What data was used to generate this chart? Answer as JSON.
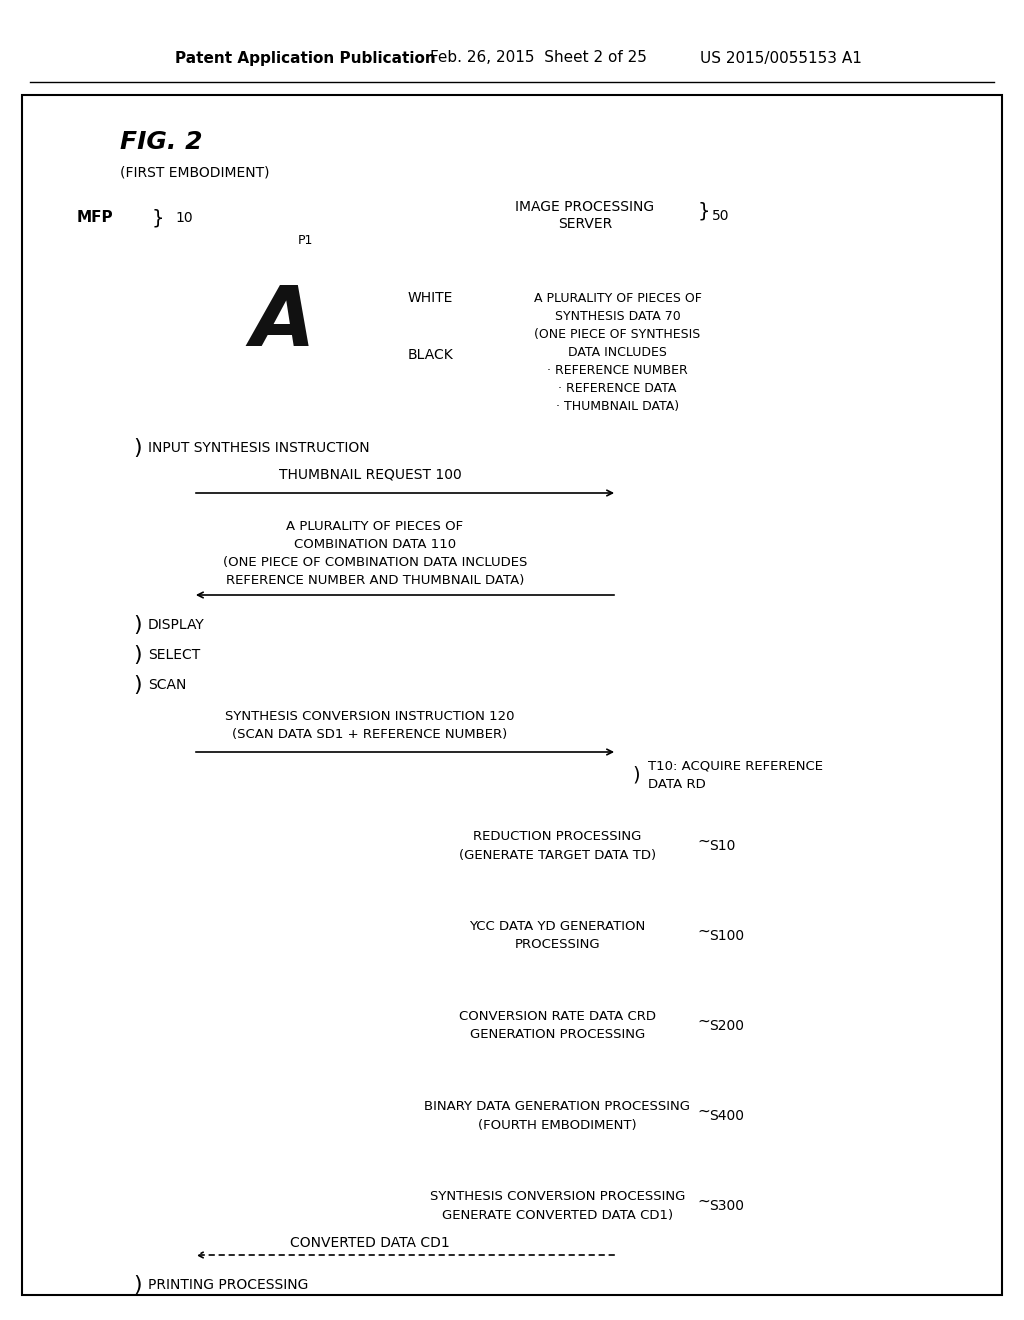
{
  "bg_color": "#ffffff",
  "header_text1": "Patent Application Publication",
  "header_text2": "Feb. 26, 2015  Sheet 2 of 25",
  "header_text3": "US 2015/0055153 A1",
  "fig_title": "FIG. 2",
  "sub_title": "(FIRST EMBODIMENT)",
  "mfp_label": "MFP",
  "mfp_ref": "10",
  "server_label": "IMAGE PROCESSING\nSERVER",
  "server_ref": "50",
  "synthesis_box_text": "A PLURALITY OF PIECES OF\nSYNTHESIS DATA 70\n(ONE PIECE OF SYNTHESIS\nDATA INCLUDES\n· REFERENCE NUMBER\n· REFERENCE DATA\n· THUMBNAIL DATA)",
  "combination_text": "A PLURALITY OF PIECES OF\nCOMBINATION DATA 110\n(ONE PIECE OF COMBINATION DATA INCLUDES\nREFERENCE NUMBER AND THUMBNAIL DATA)",
  "thumbnail_request": "THUMBNAIL REQUEST 100",
  "input_synthesis": "INPUT SYNTHESIS INSTRUCTION",
  "display_label": "DISPLAY",
  "select_label": "SELECT",
  "scan_label": "SCAN",
  "synthesis_conv_inst": "SYNTHESIS CONVERSION INSTRUCTION 120\n(SCAN DATA SD1 + REFERENCE NUMBER)",
  "t10_label": "T10: ACQUIRE REFERENCE\nDATA RD",
  "reduction_box": "REDUCTION PROCESSING\n(GENERATE TARGET DATA TD)",
  "reduction_ref": "S10",
  "ycc_box": "YCC DATA YD GENERATION\nPROCESSING",
  "ycc_ref": "S100",
  "conversion_box": "CONVERSION RATE DATA CRD\nGENERATION PROCESSING",
  "conversion_ref": "S200",
  "binary_box": "BINARY DATA GENERATION PROCESSING\n(FOURTH EMBODIMENT)",
  "binary_ref": "S400",
  "synthesis_proc_box": "SYNTHESIS CONVERSION PROCESSING\nGENERATE CONVERTED DATA CD1)",
  "synthesis_proc_ref": "S300",
  "converted_data": "CONVERTED DATA CD1",
  "printing": "PRINTING PROCESSING",
  "p1_label": "P1",
  "white_label": "WHITE",
  "black_label": "BLACK"
}
